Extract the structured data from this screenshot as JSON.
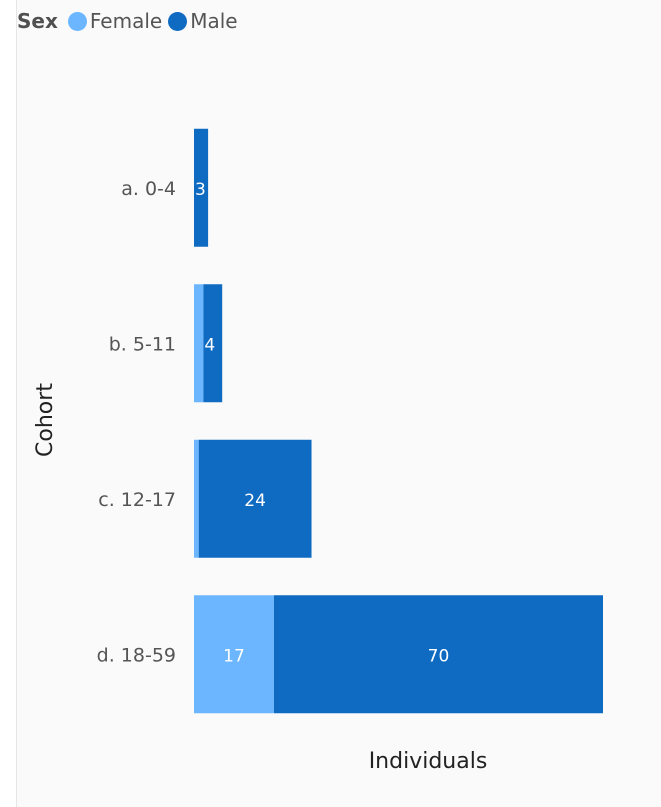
{
  "chart_data": {
    "type": "bar",
    "orientation": "horizontal",
    "stacked": true,
    "legend": {
      "title": "Sex",
      "placement": "top-left"
    },
    "categories": [
      "a. 0-4",
      "b. 5-11",
      "c. 12-17",
      "d. 18-59"
    ],
    "series": [
      {
        "name": "Female",
        "color": "#6cb6ff",
        "values": [
          0,
          2,
          1,
          17
        ],
        "labels": [
          "",
          "",
          "",
          "17"
        ]
      },
      {
        "name": "Male",
        "color": "#0f6bc2",
        "values": [
          3,
          4,
          24,
          70
        ],
        "labels": [
          "3",
          "4",
          "24",
          "70"
        ]
      }
    ],
    "xlabel": "Individuals",
    "ylabel": "Cohort",
    "xlim": [
      0,
      87
    ],
    "grid": false
  }
}
